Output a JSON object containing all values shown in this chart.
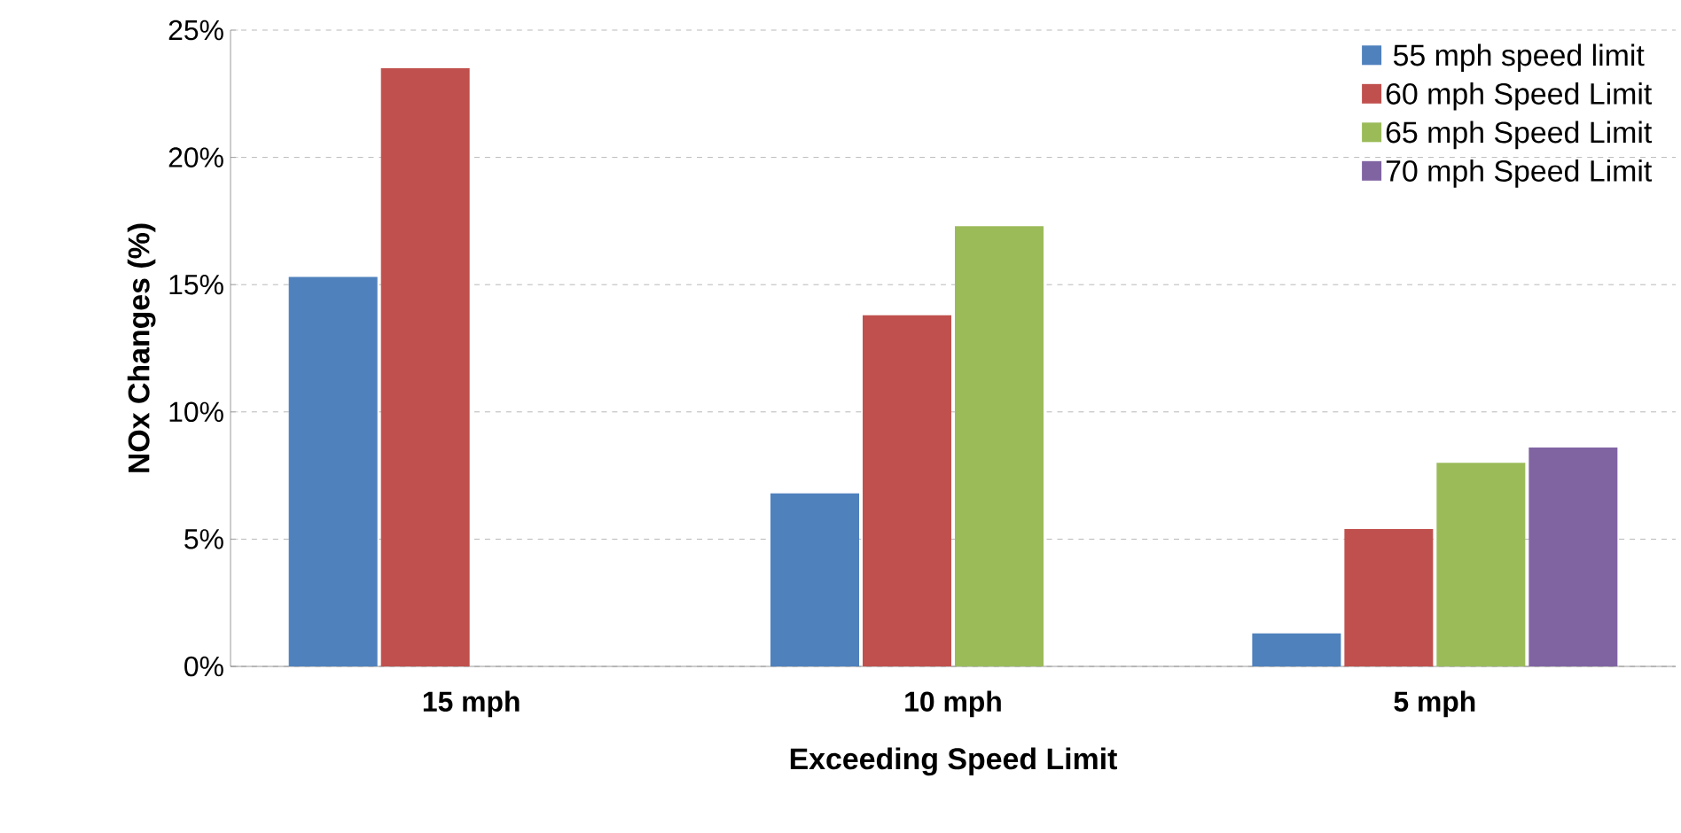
{
  "chart_data": {
    "type": "bar",
    "xlabel": "Exceeding Speed Limit",
    "ylabel": "NOx Changes (%)",
    "categories": [
      "15 mph",
      "10 mph",
      "5 mph"
    ],
    "series": [
      {
        "name": "55 mph speed limit",
        "color": "#4f81bd",
        "values": [
          15.3,
          6.8,
          1.3
        ]
      },
      {
        "name": "60 mph Speed Limit",
        "color": "#c0504d",
        "values": [
          23.5,
          13.8,
          5.4
        ]
      },
      {
        "name": "65 mph Speed Limit",
        "color": "#9bbb59",
        "values": [
          null,
          17.3,
          8.0
        ]
      },
      {
        "name": "70 mph Speed Limit",
        "color": "#8064a2",
        "values": [
          null,
          null,
          8.6
        ]
      }
    ],
    "ylim": [
      0,
      25
    ],
    "yticks": [
      {
        "value": 0,
        "label": "0%"
      },
      {
        "value": 5,
        "label": "5%"
      },
      {
        "value": 10,
        "label": "10%"
      },
      {
        "value": 15,
        "label": "15%"
      },
      {
        "value": 20,
        "label": "20%"
      },
      {
        "value": 25,
        "label": "25%"
      }
    ],
    "grid": "y",
    "legend": "top right"
  }
}
